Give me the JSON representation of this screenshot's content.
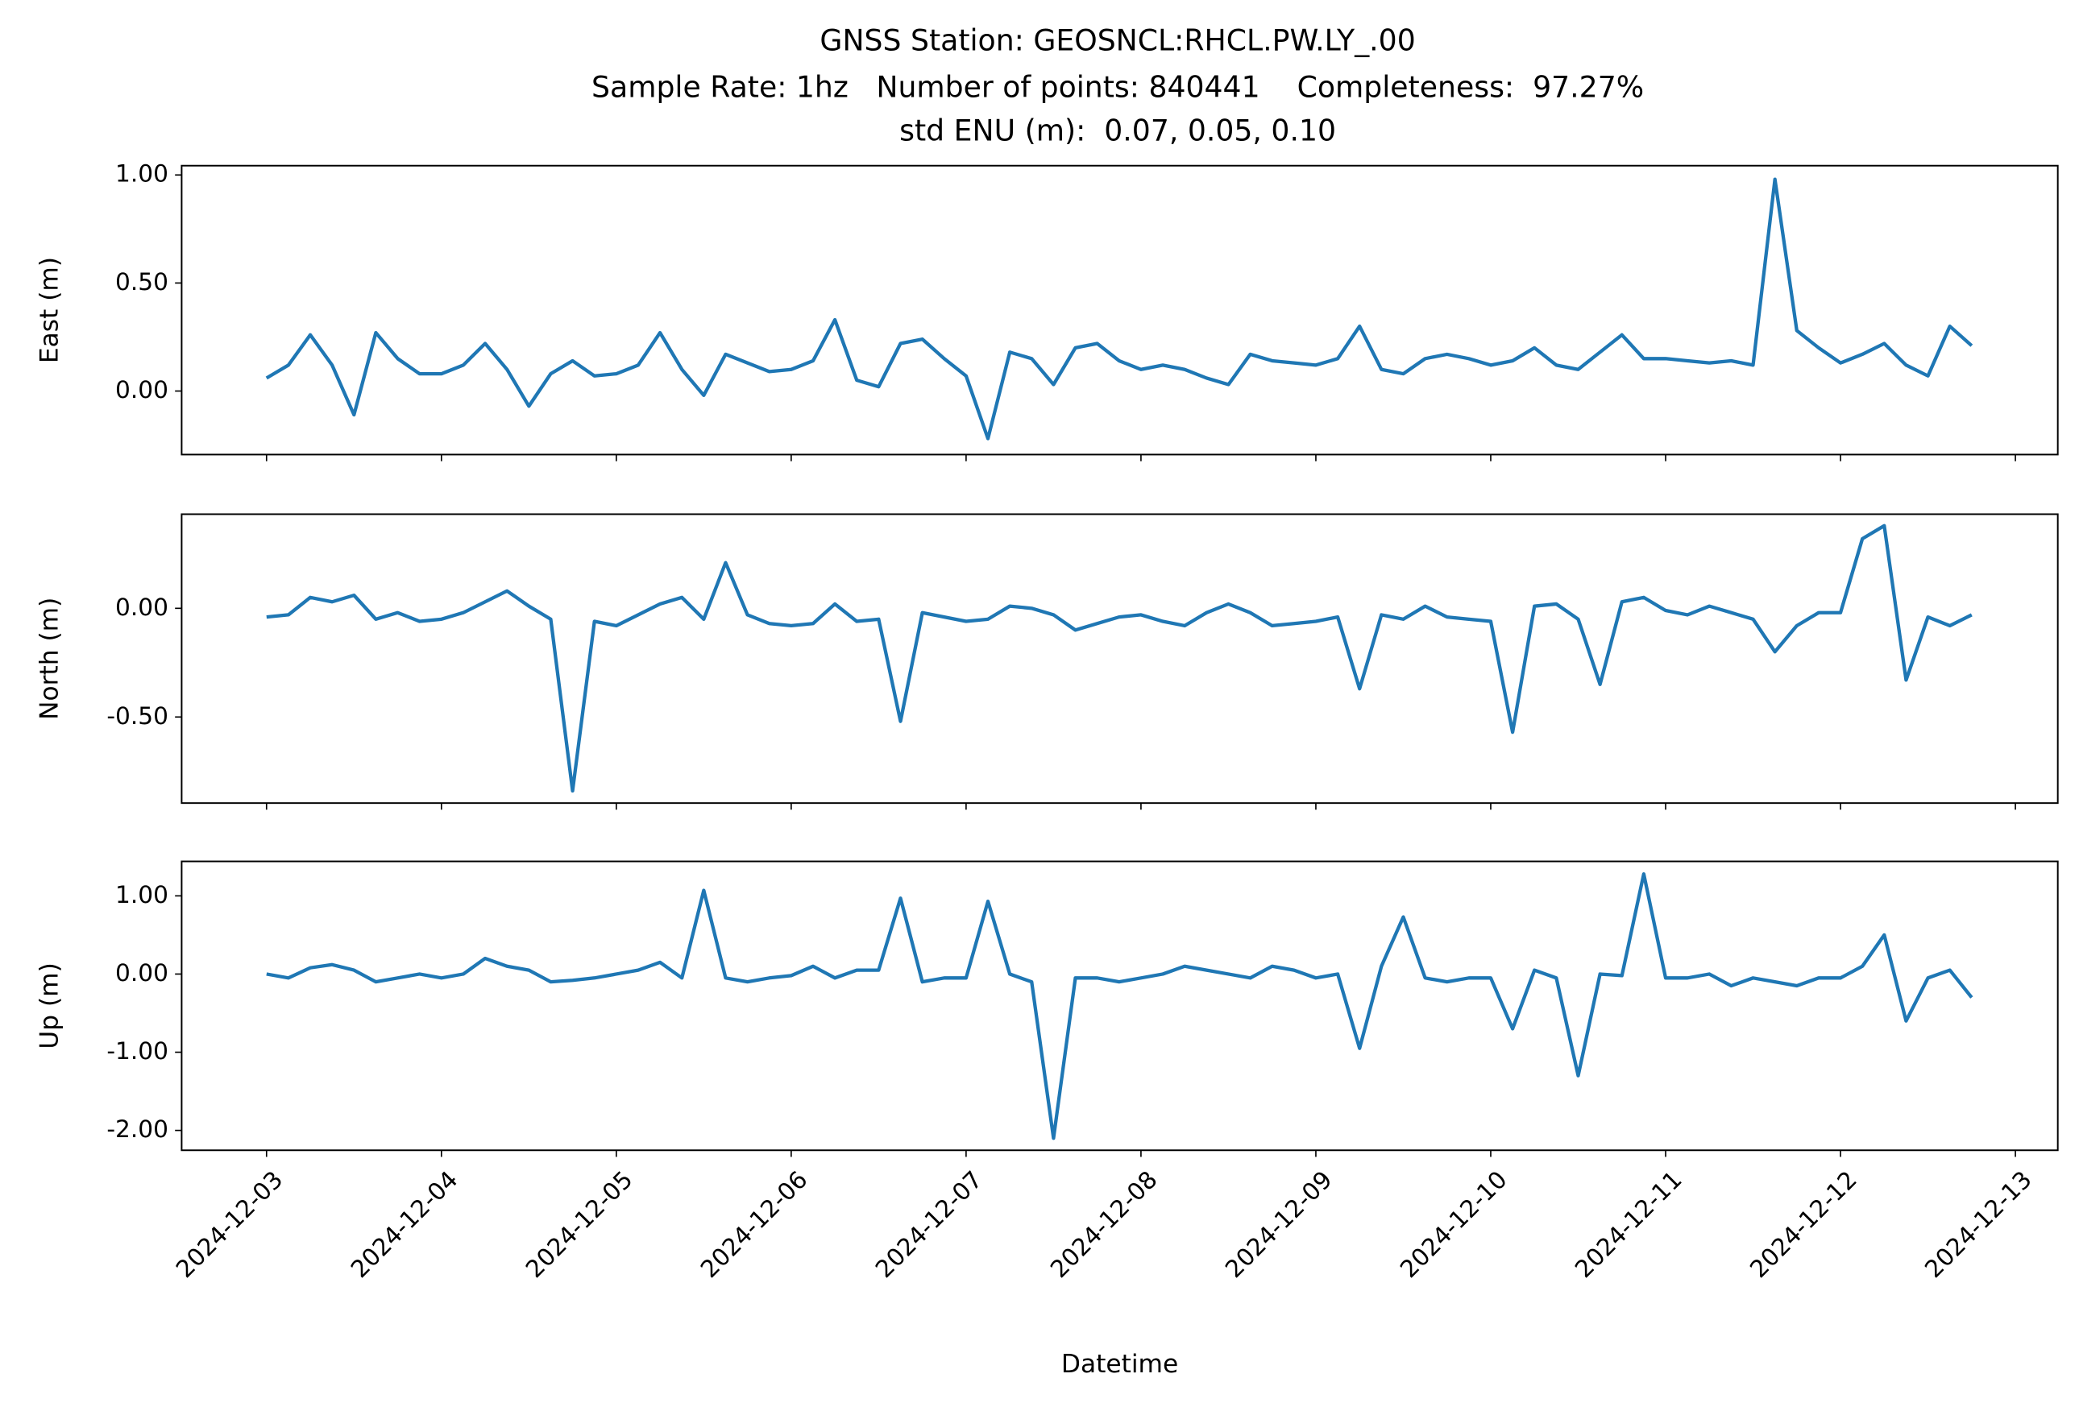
{
  "chart_data": [
    {
      "type": "line",
      "title": [
        "GNSS Station: GEOSNCL:RHCL.PW.LY_.00",
        "Sample Rate: 1hz   Number of points: 840441    Completeness:  97.27%",
        "std ENU (m):  0.07, 0.05, 0.10"
      ],
      "ylabel": "East (m)",
      "color": "#1f77b4",
      "x": [
        "2024-12-03T00:00",
        "2024-12-03T03:00",
        "2024-12-03T06:00",
        "2024-12-03T09:00",
        "2024-12-03T12:00",
        "2024-12-03T15:00",
        "2024-12-03T18:00",
        "2024-12-03T21:00",
        "2024-12-04T00:00",
        "2024-12-04T03:00",
        "2024-12-04T06:00",
        "2024-12-04T09:00",
        "2024-12-04T12:00",
        "2024-12-04T15:00",
        "2024-12-04T18:00",
        "2024-12-04T21:00",
        "2024-12-05T00:00",
        "2024-12-05T03:00",
        "2024-12-05T06:00",
        "2024-12-05T09:00",
        "2024-12-05T12:00",
        "2024-12-05T15:00",
        "2024-12-05T18:00",
        "2024-12-05T21:00",
        "2024-12-06T00:00",
        "2024-12-06T03:00",
        "2024-12-06T06:00",
        "2024-12-06T09:00",
        "2024-12-06T12:00",
        "2024-12-06T15:00",
        "2024-12-06T18:00",
        "2024-12-06T21:00",
        "2024-12-07T00:00",
        "2024-12-07T03:00",
        "2024-12-07T06:00",
        "2024-12-07T09:00",
        "2024-12-07T12:00",
        "2024-12-07T15:00",
        "2024-12-07T18:00",
        "2024-12-07T21:00",
        "2024-12-08T00:00",
        "2024-12-08T03:00",
        "2024-12-08T06:00",
        "2024-12-08T09:00",
        "2024-12-08T12:00",
        "2024-12-08T15:00",
        "2024-12-08T18:00",
        "2024-12-08T21:00",
        "2024-12-09T00:00",
        "2024-12-09T03:00",
        "2024-12-09T06:00",
        "2024-12-09T09:00",
        "2024-12-09T12:00",
        "2024-12-09T15:00",
        "2024-12-09T18:00",
        "2024-12-09T21:00",
        "2024-12-10T00:00",
        "2024-12-10T03:00",
        "2024-12-10T06:00",
        "2024-12-10T09:00",
        "2024-12-10T12:00",
        "2024-12-10T15:00",
        "2024-12-10T18:00",
        "2024-12-10T21:00",
        "2024-12-11T00:00",
        "2024-12-11T03:00",
        "2024-12-11T06:00",
        "2024-12-11T09:00",
        "2024-12-11T12:00",
        "2024-12-11T15:00",
        "2024-12-11T18:00",
        "2024-12-11T21:00",
        "2024-12-12T00:00",
        "2024-12-12T03:00",
        "2024-12-12T06:00",
        "2024-12-12T09:00",
        "2024-12-12T12:00",
        "2024-12-12T15:00",
        "2024-12-12T18:00"
      ],
      "values": [
        0.06,
        0.12,
        0.26,
        0.12,
        -0.11,
        0.27,
        0.15,
        0.08,
        0.08,
        0.12,
        0.22,
        0.1,
        -0.07,
        0.08,
        0.14,
        0.07,
        0.08,
        0.12,
        0.27,
        0.1,
        -0.02,
        0.17,
        0.13,
        0.09,
        0.1,
        0.14,
        0.33,
        0.05,
        0.02,
        0.22,
        0.24,
        0.15,
        0.07,
        -0.22,
        0.18,
        0.15,
        0.03,
        0.2,
        0.22,
        0.14,
        0.1,
        0.12,
        0.1,
        0.06,
        0.03,
        0.17,
        0.14,
        0.13,
        0.12,
        0.15,
        0.3,
        0.1,
        0.08,
        0.15,
        0.17,
        0.15,
        0.12,
        0.14,
        0.2,
        0.12,
        0.1,
        0.18,
        0.26,
        0.15,
        0.15,
        0.14,
        0.13,
        0.14,
        0.12,
        0.98,
        0.28,
        0.2,
        0.13,
        0.17,
        0.22,
        0.12,
        0.07,
        0.3,
        0.21
      ],
      "xlim": [
        "2024-12-02T12:21",
        "2024-12-13T05:49"
      ],
      "xticks": [
        "2024-12-03",
        "2024-12-04",
        "2024-12-05",
        "2024-12-06",
        "2024-12-07",
        "2024-12-08",
        "2024-12-09",
        "2024-12-10",
        "2024-12-11",
        "2024-12-12",
        "2024-12-13"
      ],
      "ylim": [
        -0.294,
        1.043
      ],
      "yticks": [
        {
          "value": 0,
          "label": "0.00"
        },
        {
          "value": 0.5,
          "label": "0.50"
        },
        {
          "value": 1,
          "label": "1.00"
        }
      ]
    },
    {
      "type": "line",
      "ylabel": "North (m)",
      "color": "#1f77b4",
      "x": [
        "2024-12-03T00:00",
        "2024-12-03T03:00",
        "2024-12-03T06:00",
        "2024-12-03T09:00",
        "2024-12-03T12:00",
        "2024-12-03T15:00",
        "2024-12-03T18:00",
        "2024-12-03T21:00",
        "2024-12-04T00:00",
        "2024-12-04T03:00",
        "2024-12-04T06:00",
        "2024-12-04T09:00",
        "2024-12-04T12:00",
        "2024-12-04T15:00",
        "2024-12-04T18:00",
        "2024-12-04T21:00",
        "2024-12-05T00:00",
        "2024-12-05T03:00",
        "2024-12-05T06:00",
        "2024-12-05T09:00",
        "2024-12-05T12:00",
        "2024-12-05T15:00",
        "2024-12-05T18:00",
        "2024-12-05T21:00",
        "2024-12-06T00:00",
        "2024-12-06T03:00",
        "2024-12-06T06:00",
        "2024-12-06T09:00",
        "2024-12-06T12:00",
        "2024-12-06T15:00",
        "2024-12-06T18:00",
        "2024-12-06T21:00",
        "2024-12-07T00:00",
        "2024-12-07T03:00",
        "2024-12-07T06:00",
        "2024-12-07T09:00",
        "2024-12-07T12:00",
        "2024-12-07T15:00",
        "2024-12-07T18:00",
        "2024-12-07T21:00",
        "2024-12-08T00:00",
        "2024-12-08T03:00",
        "2024-12-08T06:00",
        "2024-12-08T09:00",
        "2024-12-08T12:00",
        "2024-12-08T15:00",
        "2024-12-08T18:00",
        "2024-12-08T21:00",
        "2024-12-09T00:00",
        "2024-12-09T03:00",
        "2024-12-09T06:00",
        "2024-12-09T09:00",
        "2024-12-09T12:00",
        "2024-12-09T15:00",
        "2024-12-09T18:00",
        "2024-12-09T21:00",
        "2024-12-10T00:00",
        "2024-12-10T03:00",
        "2024-12-10T06:00",
        "2024-12-10T09:00",
        "2024-12-10T12:00",
        "2024-12-10T15:00",
        "2024-12-10T18:00",
        "2024-12-10T21:00",
        "2024-12-11T00:00",
        "2024-12-11T03:00",
        "2024-12-11T06:00",
        "2024-12-11T09:00",
        "2024-12-11T12:00",
        "2024-12-11T15:00",
        "2024-12-11T18:00",
        "2024-12-11T21:00",
        "2024-12-12T00:00",
        "2024-12-12T03:00",
        "2024-12-12T06:00",
        "2024-12-12T09:00",
        "2024-12-12T12:00",
        "2024-12-12T15:00",
        "2024-12-12T18:00"
      ],
      "values": [
        -0.04,
        -0.03,
        0.05,
        0.03,
        0.06,
        -0.05,
        -0.02,
        -0.06,
        -0.05,
        -0.02,
        0.03,
        0.08,
        0.01,
        -0.05,
        -0.84,
        -0.06,
        -0.08,
        -0.03,
        0.02,
        0.05,
        -0.05,
        0.21,
        -0.03,
        -0.07,
        -0.08,
        -0.07,
        0.02,
        -0.06,
        -0.05,
        -0.52,
        -0.02,
        -0.04,
        -0.06,
        -0.05,
        0.01,
        0.0,
        -0.03,
        -0.1,
        -0.07,
        -0.04,
        -0.03,
        -0.06,
        -0.08,
        -0.02,
        0.02,
        -0.02,
        -0.08,
        -0.07,
        -0.06,
        -0.04,
        -0.37,
        -0.03,
        -0.05,
        0.01,
        -0.04,
        -0.05,
        -0.06,
        -0.57,
        0.01,
        0.02,
        -0.05,
        -0.35,
        0.03,
        0.05,
        -0.01,
        -0.03,
        0.01,
        -0.02,
        -0.05,
        -0.2,
        -0.08,
        -0.02,
        -0.02,
        0.32,
        0.38,
        -0.33,
        -0.04,
        -0.08,
        -0.03
      ],
      "xlim": [
        "2024-12-02T12:21",
        "2024-12-13T05:49"
      ],
      "xticks": [
        "2024-12-03",
        "2024-12-04",
        "2024-12-05",
        "2024-12-06",
        "2024-12-07",
        "2024-12-08",
        "2024-12-09",
        "2024-12-10",
        "2024-12-11",
        "2024-12-12",
        "2024-12-13"
      ],
      "ylim": [
        -0.896,
        0.433
      ],
      "yticks": [
        {
          "value": -0.5,
          "label": "-0.50"
        },
        {
          "value": 0,
          "label": "0.00"
        }
      ]
    },
    {
      "type": "line",
      "ylabel": "Up (m)",
      "xlabel": "Datetime",
      "color": "#1f77b4",
      "x": [
        "2024-12-03T00:00",
        "2024-12-03T03:00",
        "2024-12-03T06:00",
        "2024-12-03T09:00",
        "2024-12-03T12:00",
        "2024-12-03T15:00",
        "2024-12-03T18:00",
        "2024-12-03T21:00",
        "2024-12-04T00:00",
        "2024-12-04T03:00",
        "2024-12-04T06:00",
        "2024-12-04T09:00",
        "2024-12-04T12:00",
        "2024-12-04T15:00",
        "2024-12-04T18:00",
        "2024-12-04T21:00",
        "2024-12-05T00:00",
        "2024-12-05T03:00",
        "2024-12-05T06:00",
        "2024-12-05T09:00",
        "2024-12-05T12:00",
        "2024-12-05T15:00",
        "2024-12-05T18:00",
        "2024-12-05T21:00",
        "2024-12-06T00:00",
        "2024-12-06T03:00",
        "2024-12-06T06:00",
        "2024-12-06T09:00",
        "2024-12-06T12:00",
        "2024-12-06T15:00",
        "2024-12-06T18:00",
        "2024-12-06T21:00",
        "2024-12-07T00:00",
        "2024-12-07T03:00",
        "2024-12-07T06:00",
        "2024-12-07T09:00",
        "2024-12-07T12:00",
        "2024-12-07T15:00",
        "2024-12-07T18:00",
        "2024-12-07T21:00",
        "2024-12-08T00:00",
        "2024-12-08T03:00",
        "2024-12-08T06:00",
        "2024-12-08T09:00",
        "2024-12-08T12:00",
        "2024-12-08T15:00",
        "2024-12-08T18:00",
        "2024-12-08T21:00",
        "2024-12-09T00:00",
        "2024-12-09T03:00",
        "2024-12-09T06:00",
        "2024-12-09T09:00",
        "2024-12-09T12:00",
        "2024-12-09T15:00",
        "2024-12-09T18:00",
        "2024-12-09T21:00",
        "2024-12-10T00:00",
        "2024-12-10T03:00",
        "2024-12-10T06:00",
        "2024-12-10T09:00",
        "2024-12-10T12:00",
        "2024-12-10T15:00",
        "2024-12-10T18:00",
        "2024-12-10T21:00",
        "2024-12-11T00:00",
        "2024-12-11T03:00",
        "2024-12-11T06:00",
        "2024-12-11T09:00",
        "2024-12-11T12:00",
        "2024-12-11T15:00",
        "2024-12-11T18:00",
        "2024-12-11T21:00",
        "2024-12-12T00:00",
        "2024-12-12T03:00",
        "2024-12-12T06:00",
        "2024-12-12T09:00",
        "2024-12-12T12:00",
        "2024-12-12T15:00",
        "2024-12-12T18:00"
      ],
      "values": [
        0.0,
        -0.05,
        0.08,
        0.12,
        0.05,
        -0.1,
        -0.05,
        0.0,
        -0.05,
        0.0,
        0.2,
        0.1,
        0.05,
        -0.1,
        -0.08,
        -0.05,
        0.0,
        0.05,
        0.15,
        -0.05,
        1.07,
        -0.05,
        -0.1,
        -0.05,
        -0.02,
        0.1,
        -0.05,
        0.05,
        0.05,
        0.97,
        -0.1,
        -0.05,
        -0.05,
        0.93,
        0.0,
        -0.1,
        -2.1,
        -0.05,
        -0.05,
        -0.1,
        -0.05,
        0.0,
        0.1,
        0.05,
        0.0,
        -0.05,
        0.1,
        0.05,
        -0.05,
        0.0,
        -0.95,
        0.1,
        0.73,
        -0.05,
        -0.1,
        -0.05,
        -0.05,
        -0.7,
        0.05,
        -0.05,
        -1.3,
        0.0,
        -0.02,
        1.28,
        -0.05,
        -0.05,
        0.0,
        -0.15,
        -0.05,
        -0.1,
        -0.15,
        -0.05,
        -0.05,
        0.1,
        0.5,
        -0.6,
        -0.05,
        0.05,
        -0.3
      ],
      "xlim": [
        "2024-12-02T12:21",
        "2024-12-13T05:49"
      ],
      "xticks": [
        "2024-12-03",
        "2024-12-04",
        "2024-12-05",
        "2024-12-06",
        "2024-12-07",
        "2024-12-08",
        "2024-12-09",
        "2024-12-10",
        "2024-12-11",
        "2024-12-12",
        "2024-12-13"
      ],
      "ylim": [
        -2.254,
        1.441
      ],
      "yticks": [
        {
          "value": -2,
          "label": "-2.00"
        },
        {
          "value": -1,
          "label": "-1.00"
        },
        {
          "value": 0,
          "label": "0.00"
        },
        {
          "value": 1,
          "label": "1.00"
        }
      ]
    }
  ]
}
